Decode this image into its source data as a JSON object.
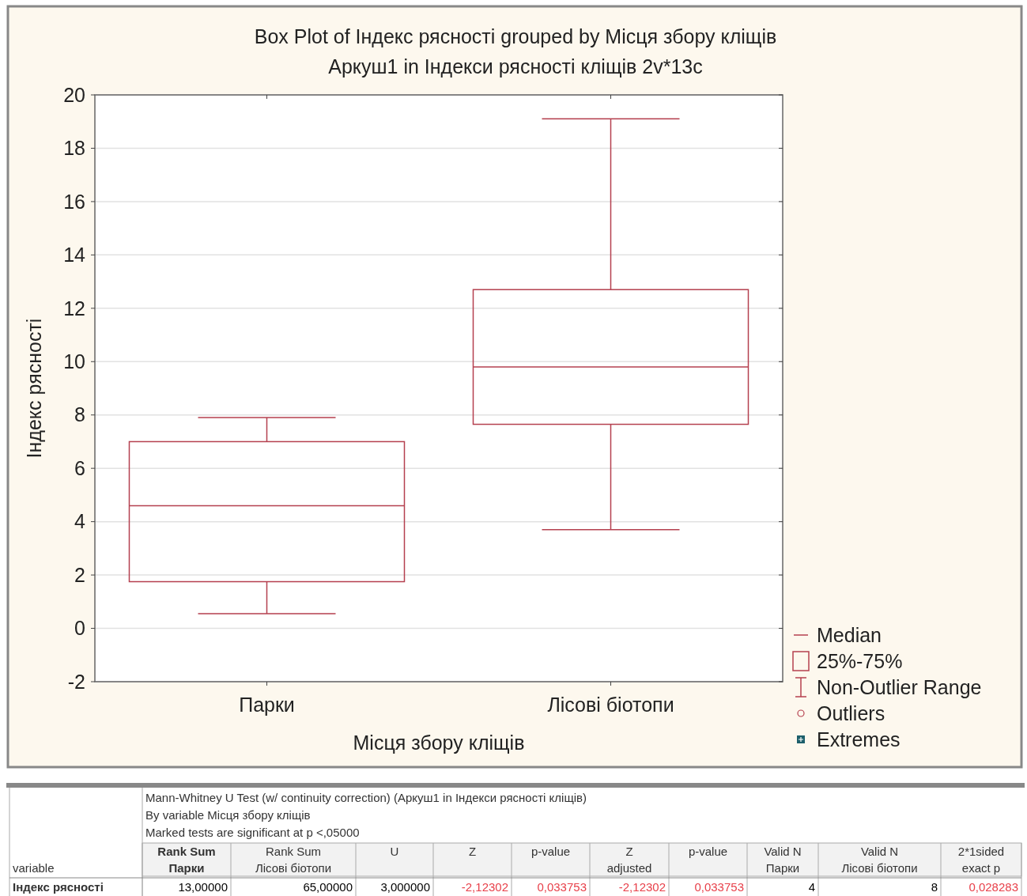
{
  "chart_data": [
    {
      "type": "box",
      "title": "Box Plot of Індекс рясності grouped by  Місця збору кліщів",
      "subtitle": "Аркуш1 in Індекси рясності кліщів 2v*13c",
      "xlabel": "Місця збору кліщів",
      "ylabel": "Індекс рясності",
      "categories": [
        "Парки",
        "Лісові біотопи"
      ],
      "color": "#b5404f",
      "boxes": [
        {
          "low": 0.55,
          "q1": 1.75,
          "median": 4.6,
          "q3": 7.0,
          "high": 7.9
        },
        {
          "low": 3.7,
          "q1": 7.65,
          "median": 9.8,
          "q3": 12.7,
          "high": 19.1
        }
      ],
      "ylim": [
        -2,
        20
      ],
      "yticks": [
        -2,
        0,
        2,
        4,
        6,
        8,
        10,
        12,
        14,
        16,
        18,
        20
      ],
      "grid": "y",
      "annotations": [
        "Median",
        "25%-75%",
        "Non-Outlier Range",
        "Outliers",
        "Extremes"
      ]
    },
    {
      "type": "other",
      "title": "Mann-Whitney U Test (w/ continuity correction) (Аркуш1 in Індекси рясності кліщів)",
      "subtitle": "By variable Місця збору кліщів",
      "annotations": [
        "Marked tests are significant at p <,05000",
        "variable",
        "Rank Sum\nПарки",
        "Rank Sum\nЛісові біотопи",
        "U",
        "Z",
        "p-value",
        "Z\nadjusted",
        "p-value",
        "Valid N\nПарки",
        "Valid N\nЛісові біотопи",
        "2*1sided\nexact p",
        "Індекс рясності",
        "13,00000",
        "65,00000",
        "3,000000",
        "-2,12302",
        "0,033753",
        "-2,12302",
        "0,033753",
        "4",
        "8",
        "0,028283"
      ],
      "colors": [
        "#000000",
        "#000000",
        "#000000",
        "#e8404a",
        "#e8404a",
        "#e8404a",
        "#e8404a",
        "#000000",
        "#000000",
        "#e8404a"
      ]
    }
  ]
}
